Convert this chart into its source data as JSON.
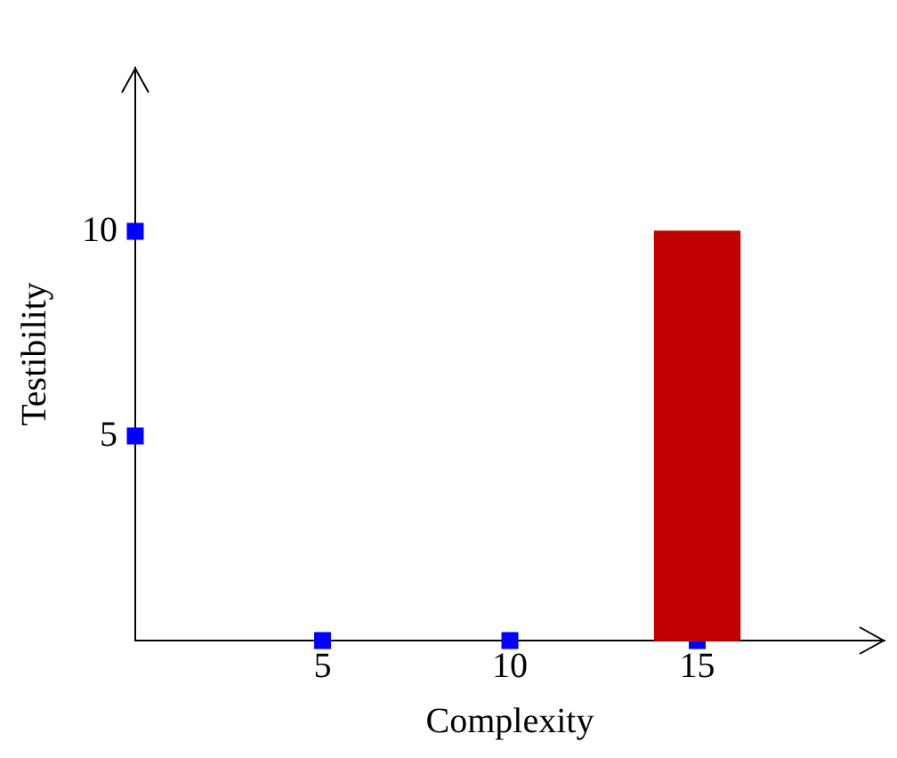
{
  "chart_data": {
    "type": "scatter",
    "xlabel": "Complexity",
    "ylabel": "Testibility",
    "xlim": [
      0,
      20
    ],
    "ylim": [
      0,
      14
    ],
    "xticks": [
      5,
      10,
      15
    ],
    "yticks": [
      5,
      10
    ],
    "grid": false,
    "legend": false,
    "marker": "square",
    "series": [
      {
        "type": "bar",
        "color": "#c00000",
        "x": [
          15
        ],
        "values": [
          10
        ]
      },
      {
        "color": "#0000ff",
        "x": [
          0,
          0,
          5,
          10,
          15
        ],
        "values": [
          10,
          5,
          0,
          0,
          0
        ]
      }
    ]
  }
}
